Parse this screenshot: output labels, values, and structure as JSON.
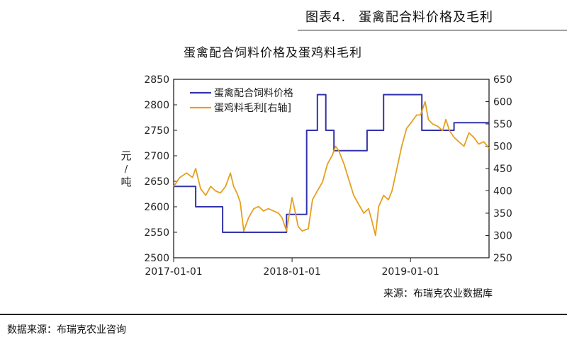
{
  "figure": {
    "number": "图表4.",
    "title": "蛋禽配合料价格及毛利"
  },
  "source_inner": "来源：布瑞克农业数据库",
  "data_source": "数据来源：布瑞克农业咨询",
  "colors": {
    "feed_price": "#3333aa",
    "margin": "#e6a020"
  },
  "chart_data": {
    "type": "line",
    "title": "蛋禽配合饲料价格及蛋鸡料毛利",
    "ylabel": "元/吨",
    "left_axis": {
      "min": 2500,
      "max": 2850,
      "ticks": [
        "2500",
        "2550",
        "2600",
        "2650",
        "2700",
        "2750",
        "2800",
        "2850"
      ]
    },
    "right_axis": {
      "min": 250,
      "max": 650,
      "ticks": [
        "250",
        "300",
        "350",
        "400",
        "450",
        "500",
        "550",
        "600",
        "650"
      ]
    },
    "x_axis": {
      "start": "2017-01-01",
      "end": "2019-08-31",
      "ticks": [
        "2017-01-01",
        "2018-01-01",
        "2019-01-01"
      ]
    },
    "legend": {
      "position": "top-left",
      "entries": [
        "蛋禽配合饲料价格",
        "蛋鸡料毛利[右轴]"
      ]
    },
    "series": [
      {
        "name": "蛋禽配合饲料价格",
        "axis": "left",
        "step": true,
        "points": [
          [
            "2017-01-01",
            2640
          ],
          [
            "2017-03-10",
            2640
          ],
          [
            "2017-03-10",
            2600
          ],
          [
            "2017-06-01",
            2600
          ],
          [
            "2017-06-01",
            2550
          ],
          [
            "2017-12-15",
            2550
          ],
          [
            "2017-12-15",
            2585
          ],
          [
            "2018-02-15",
            2585
          ],
          [
            "2018-02-15",
            2750
          ],
          [
            "2018-03-20",
            2750
          ],
          [
            "2018-03-20",
            2820
          ],
          [
            "2018-04-15",
            2820
          ],
          [
            "2018-04-15",
            2750
          ],
          [
            "2018-05-10",
            2750
          ],
          [
            "2018-05-10",
            2710
          ],
          [
            "2018-08-20",
            2710
          ],
          [
            "2018-08-20",
            2750
          ],
          [
            "2018-10-10",
            2750
          ],
          [
            "2018-10-10",
            2820
          ],
          [
            "2019-02-05",
            2820
          ],
          [
            "2019-02-05",
            2750
          ],
          [
            "2019-05-15",
            2750
          ],
          [
            "2019-05-15",
            2765
          ],
          [
            "2019-08-31",
            2765
          ]
        ]
      },
      {
        "name": "蛋鸡料毛利[右轴]",
        "axis": "right",
        "points": [
          [
            "2017-01-01",
            410
          ],
          [
            "2017-01-20",
            430
          ],
          [
            "2017-02-10",
            440
          ],
          [
            "2017-02-28",
            430
          ],
          [
            "2017-03-10",
            450
          ],
          [
            "2017-03-25",
            405
          ],
          [
            "2017-04-10",
            390
          ],
          [
            "2017-04-25",
            410
          ],
          [
            "2017-05-10",
            400
          ],
          [
            "2017-05-25",
            395
          ],
          [
            "2017-06-10",
            410
          ],
          [
            "2017-06-25",
            440
          ],
          [
            "2017-07-05",
            410
          ],
          [
            "2017-07-15",
            395
          ],
          [
            "2017-07-25",
            375
          ],
          [
            "2017-08-05",
            310
          ],
          [
            "2017-08-20",
            340
          ],
          [
            "2017-09-05",
            360
          ],
          [
            "2017-09-20",
            365
          ],
          [
            "2017-10-05",
            355
          ],
          [
            "2017-10-20",
            360
          ],
          [
            "2017-11-05",
            355
          ],
          [
            "2017-11-20",
            350
          ],
          [
            "2017-12-01",
            340
          ],
          [
            "2017-12-15",
            310
          ],
          [
            "2018-01-01",
            385
          ],
          [
            "2018-01-10",
            355
          ],
          [
            "2018-01-20",
            320
          ],
          [
            "2018-02-01",
            310
          ],
          [
            "2018-02-20",
            315
          ],
          [
            "2018-03-05",
            380
          ],
          [
            "2018-03-20",
            400
          ],
          [
            "2018-04-05",
            420
          ],
          [
            "2018-04-20",
            460
          ],
          [
            "2018-05-05",
            480
          ],
          [
            "2018-05-15",
            500
          ],
          [
            "2018-05-25",
            490
          ],
          [
            "2018-06-10",
            460
          ],
          [
            "2018-06-25",
            425
          ],
          [
            "2018-07-10",
            390
          ],
          [
            "2018-07-25",
            370
          ],
          [
            "2018-08-10",
            350
          ],
          [
            "2018-08-25",
            360
          ],
          [
            "2018-09-05",
            330
          ],
          [
            "2018-09-15",
            300
          ],
          [
            "2018-09-25",
            365
          ],
          [
            "2018-10-10",
            390
          ],
          [
            "2018-10-25",
            380
          ],
          [
            "2018-11-05",
            400
          ],
          [
            "2018-11-20",
            450
          ],
          [
            "2018-12-05",
            500
          ],
          [
            "2018-12-20",
            540
          ],
          [
            "2019-01-05",
            555
          ],
          [
            "2019-01-20",
            570
          ],
          [
            "2019-02-01",
            570
          ],
          [
            "2019-02-15",
            600
          ],
          [
            "2019-02-25",
            560
          ],
          [
            "2019-03-10",
            550
          ],
          [
            "2019-03-25",
            545
          ],
          [
            "2019-04-10",
            535
          ],
          [
            "2019-04-20",
            560
          ],
          [
            "2019-05-01",
            535
          ],
          [
            "2019-05-15",
            520
          ],
          [
            "2019-05-30",
            510
          ],
          [
            "2019-06-15",
            500
          ],
          [
            "2019-06-30",
            530
          ],
          [
            "2019-07-15",
            520
          ],
          [
            "2019-07-30",
            505
          ],
          [
            "2019-08-15",
            510
          ],
          [
            "2019-08-31",
            495
          ]
        ]
      }
    ]
  }
}
